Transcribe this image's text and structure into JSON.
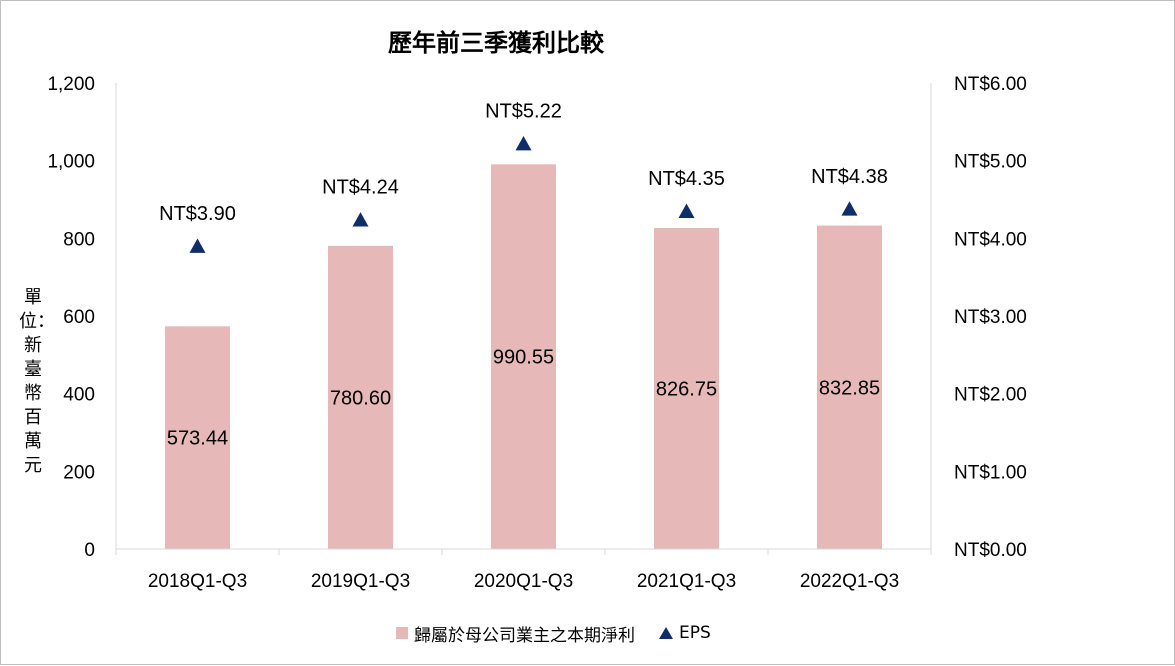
{
  "chart_data": {
    "type": "bar",
    "title": "歷年前三季獲利比較",
    "ylabel": "單位：新臺幣百萬元",
    "y2label": "",
    "categories": [
      "2018Q1-Q3",
      "2019Q1-Q3",
      "2020Q1-Q3",
      "2021Q1-Q3",
      "2022Q1-Q3"
    ],
    "series": [
      {
        "name": "歸屬於母公司業主之本期淨利",
        "kind": "bar",
        "axis": "left",
        "color": "#e6b8b7",
        "values": [
          573.44,
          780.6,
          990.55,
          826.75,
          832.85
        ],
        "labels": [
          "573.44",
          "780.60",
          "990.55",
          "826.75",
          "832.85"
        ]
      },
      {
        "name": "EPS",
        "kind": "marker",
        "marker": "triangle",
        "axis": "right",
        "color": "#0f2d69",
        "values": [
          3.9,
          4.24,
          5.22,
          4.35,
          4.38
        ],
        "labels": [
          "NT$3.90",
          "NT$4.24",
          "NT$5.22",
          "NT$4.35",
          "NT$4.38"
        ]
      }
    ],
    "ylim": [
      0,
      1200
    ],
    "yticks": [
      "0",
      "200",
      "400",
      "600",
      "800",
      "1,000",
      "1,200"
    ],
    "y2lim": [
      0,
      6
    ],
    "y2ticks": [
      "NT$0.00",
      "NT$1.00",
      "NT$2.00",
      "NT$3.00",
      "NT$4.00",
      "NT$5.00",
      "NT$6.00"
    ],
    "grid": false,
    "legend": "bottom"
  }
}
